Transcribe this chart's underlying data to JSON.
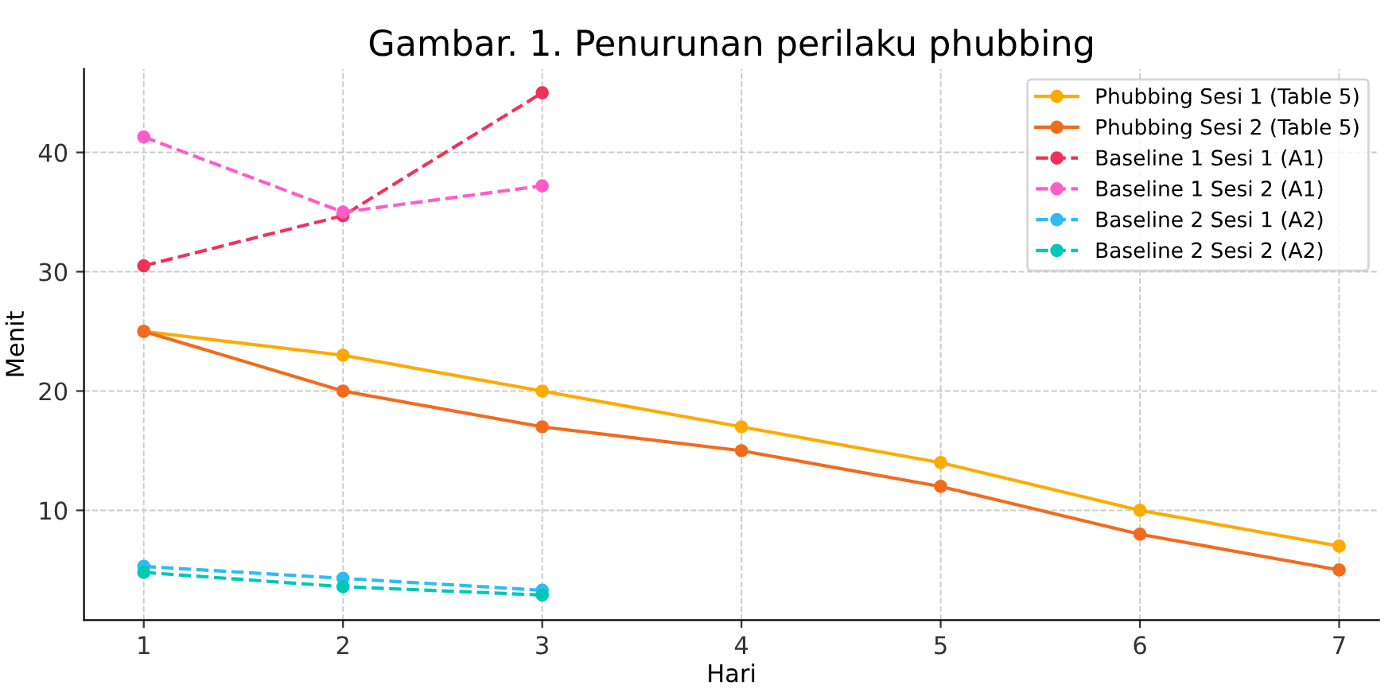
{
  "chart_data": {
    "type": "line",
    "title": "Gambar. 1. Penurunan perilaku phubbing",
    "xlabel": "Hari",
    "ylabel": "Menit",
    "xlim": [
      0.7,
      7.2
    ],
    "xticks": [
      1,
      2,
      3,
      4,
      5,
      6,
      7
    ],
    "ylim": [
      0.8,
      47
    ],
    "yticks": [
      10,
      20,
      30,
      40
    ],
    "grid": true,
    "legend": "top right",
    "marker": "circle",
    "series": [
      {
        "name": "Phubbing Sesi 1 (Table 5)",
        "color": "#ffaa00",
        "line_style": "solid",
        "x": [
          1,
          2,
          3,
          4,
          5,
          6,
          7
        ],
        "values": [
          25,
          23,
          20,
          17,
          14,
          10,
          7
        ]
      },
      {
        "name": "Phubbing Sesi 2 (Table 5)",
        "color": "#f26b1d",
        "line_style": "solid",
        "x": [
          1,
          2,
          3,
          4,
          5,
          6,
          7
        ],
        "values": [
          25,
          20,
          17,
          15,
          12,
          8,
          5
        ]
      },
      {
        "name": "Baseline 1 Sesi 1 (A1)",
        "color": "#f0325a",
        "line_style": "dashed",
        "x": [
          1,
          2,
          3
        ],
        "values": [
          30.5,
          34.7,
          45
        ]
      },
      {
        "name": "Baseline 1 Sesi 2 (A1)",
        "color": "#ff5cc8",
        "line_style": "dashed",
        "x": [
          1,
          2,
          3
        ],
        "values": [
          41.3,
          35,
          37.2
        ]
      },
      {
        "name": "Baseline 2 Sesi 1 (A2)",
        "color": "#2ebbf5",
        "line_style": "dashed",
        "x": [
          1,
          2,
          3
        ],
        "values": [
          5.3,
          4.3,
          3.3
        ]
      },
      {
        "name": "Baseline 2 Sesi 2 (A2)",
        "color": "#00c8b4",
        "line_style": "dashed",
        "x": [
          1,
          2,
          3
        ],
        "values": [
          4.8,
          3.6,
          2.9
        ]
      }
    ]
  }
}
